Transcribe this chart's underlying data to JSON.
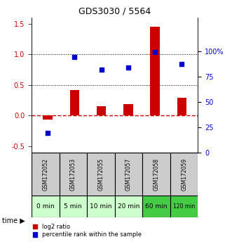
{
  "title": "GDS3030 / 5564",
  "samples": [
    "GSM172052",
    "GSM172053",
    "GSM172055",
    "GSM172057",
    "GSM172058",
    "GSM172059"
  ],
  "time_labels": [
    "0 min",
    "5 min",
    "10 min",
    "20 min",
    "60 min",
    "120 min"
  ],
  "log2_ratio": [
    -0.06,
    0.42,
    0.15,
    0.19,
    1.45,
    0.29
  ],
  "percentile_rank": [
    0.19,
    0.94,
    0.82,
    0.84,
    0.99,
    0.87
  ],
  "bar_color": "#cc0000",
  "dot_color": "#0000cc",
  "ylim_left": [
    -0.6,
    1.6
  ],
  "ylim_right": [
    0,
    133.33
  ],
  "yticks_left": [
    -0.5,
    0.0,
    0.5,
    1.0,
    1.5
  ],
  "yticks_right": [
    0,
    25,
    50,
    75,
    100
  ],
  "ytick_labels_right": [
    "0",
    "25",
    "50",
    "75",
    "100%"
  ],
  "hline_zero_color": "#cc0000",
  "hline_dotted_vals": [
    0.5,
    1.0
  ],
  "bg_color_gsm": "#cccccc",
  "bg_color_time_light": "#ccffcc",
  "bg_color_time_dark": "#44cc44",
  "time_dark_indices": [
    4,
    5
  ],
  "legend_red_label": "log2 ratio",
  "legend_blue_label": "percentile rank within the sample",
  "time_arrow_label": "time"
}
